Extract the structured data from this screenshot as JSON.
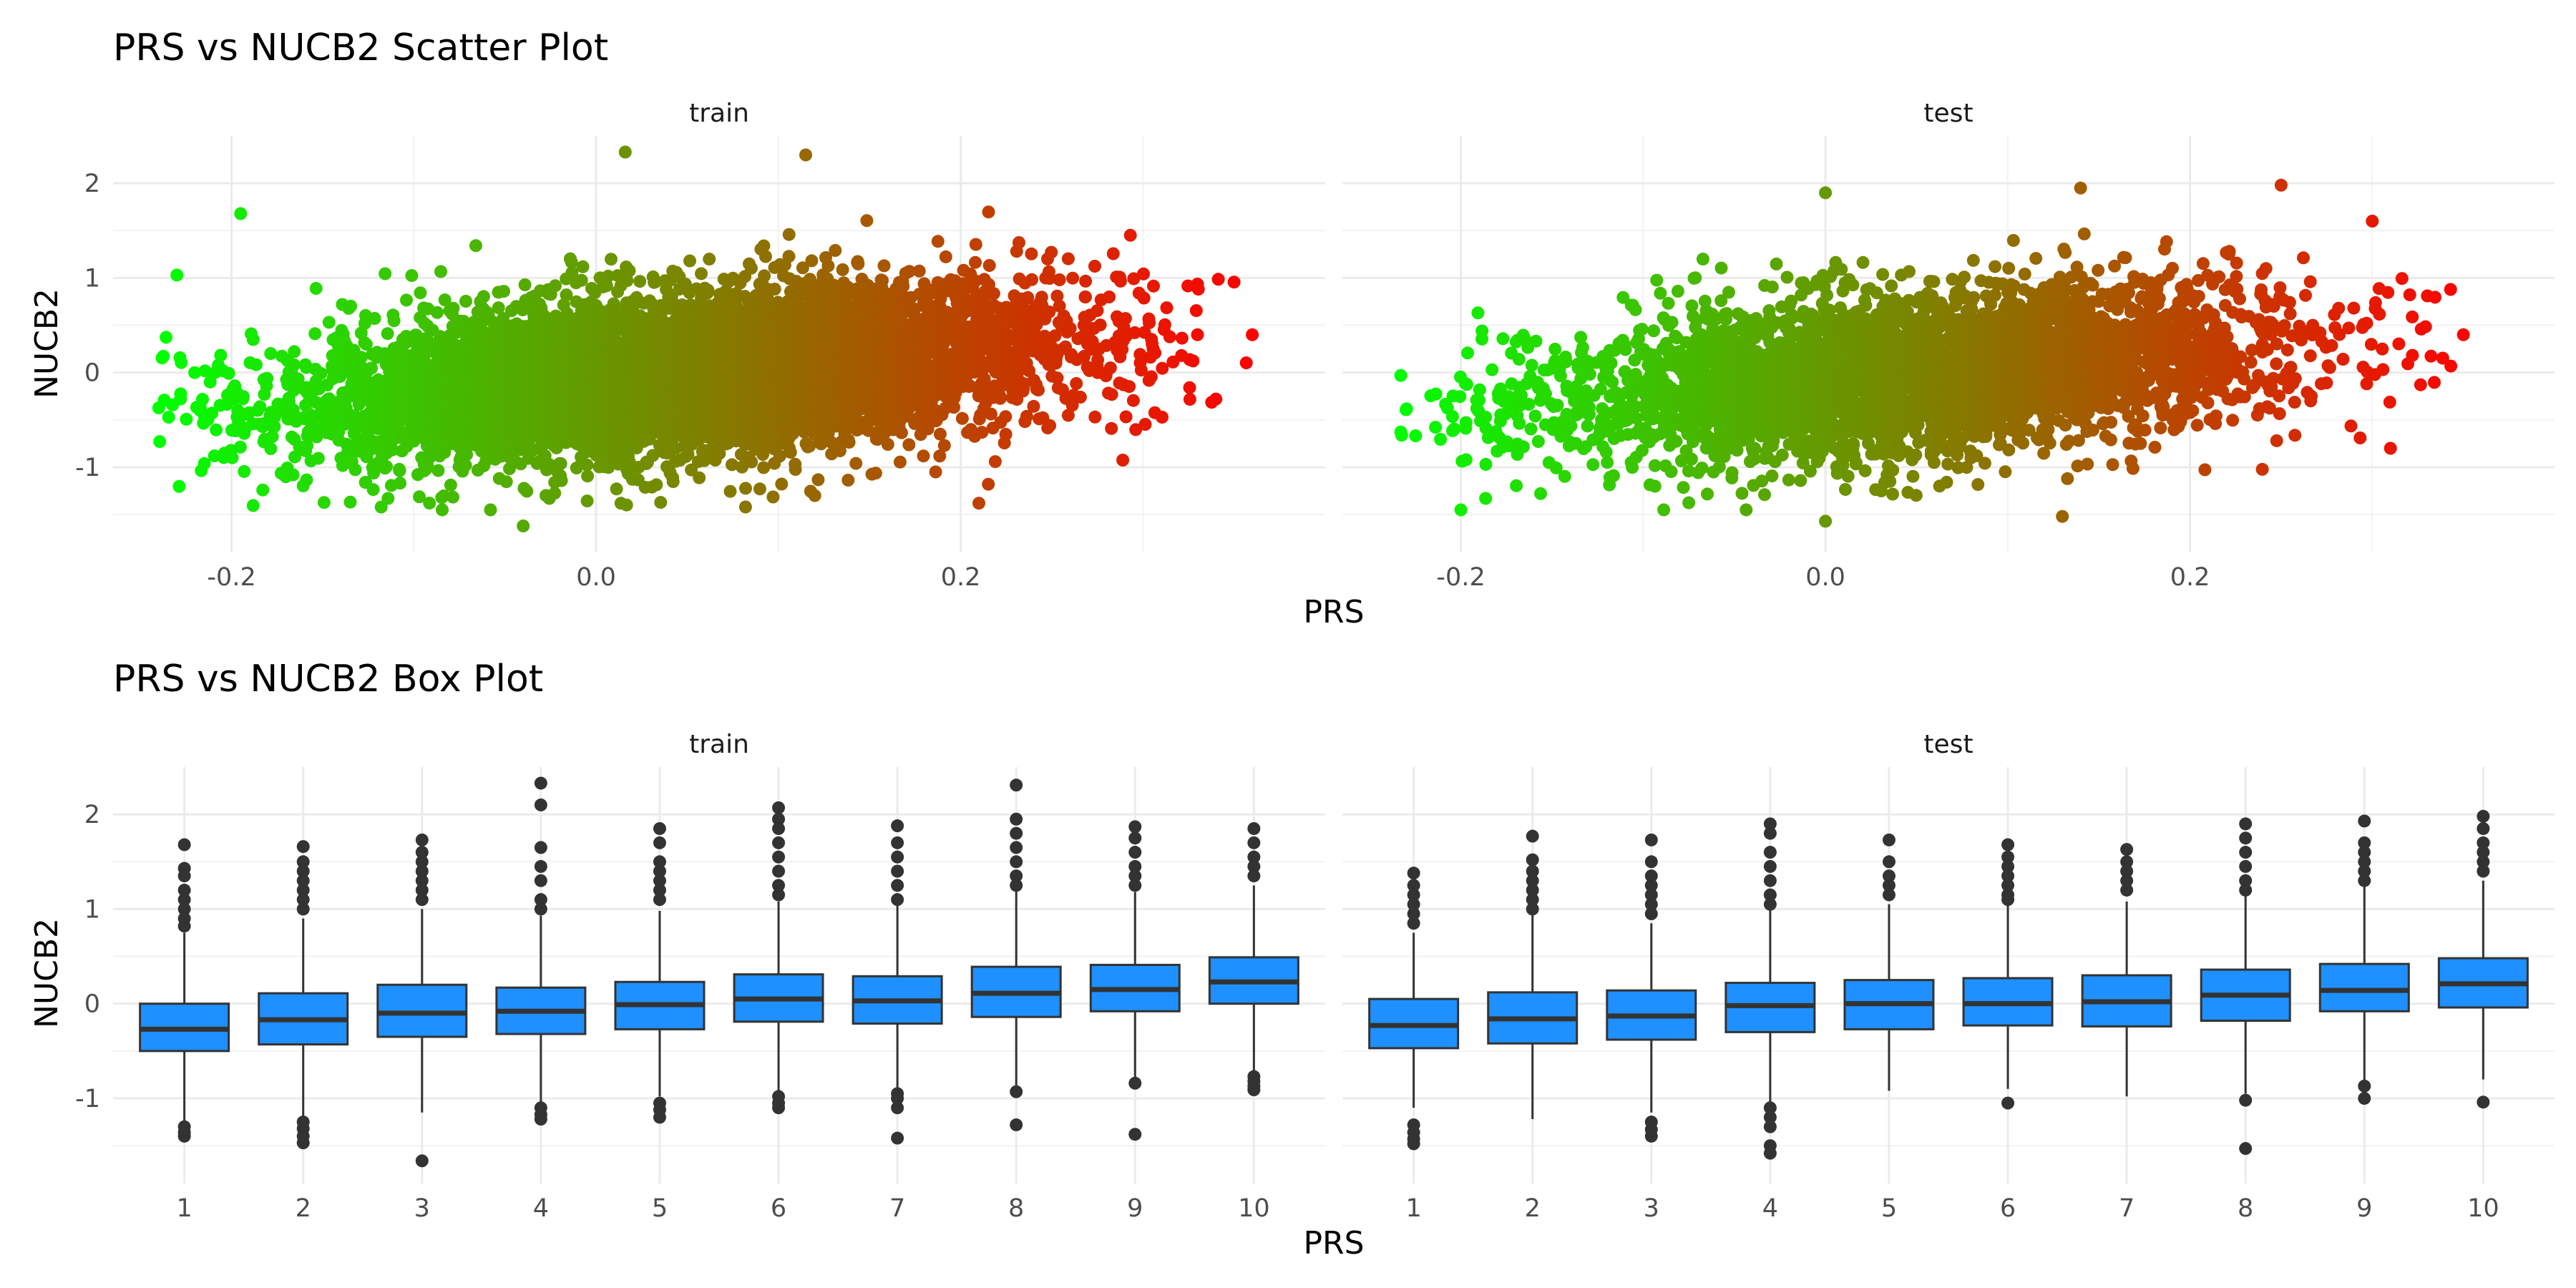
{
  "chart_data": [
    {
      "type": "scatter",
      "title": "PRS vs NUCB2 Scatter Plot",
      "xlabel": "PRS",
      "ylabel": "NUCB2",
      "facets": [
        "train",
        "test"
      ],
      "xlim": [
        -0.265,
        0.4
      ],
      "ylim": [
        -1.9,
        2.5
      ],
      "x_ticks": [
        -0.2,
        0.0,
        0.2
      ],
      "y_ticks": [
        -1,
        0,
        1,
        2
      ],
      "x_tick_labels": [
        "-0.2",
        "0.0",
        "0.2"
      ],
      "y_tick_labels": [
        "-1",
        "0",
        "1",
        "2"
      ],
      "color_scale": {
        "low": "#00ff00",
        "high": "#ff0000",
        "by": "PRS"
      },
      "grid": true,
      "series": [
        {
          "facet": "train",
          "x_range": [
            -0.24,
            0.36
          ],
          "trend_slope": 1.55,
          "spread": 0.42,
          "extreme_points": [
            [
              0.016,
              2.33
            ],
            [
              0.115,
              2.3
            ],
            [
              -0.195,
              1.68
            ],
            [
              -0.04,
              -1.62
            ],
            [
              0.21,
              -1.38
            ],
            [
              0.36,
              0.4
            ],
            [
              0.34,
              -0.28
            ],
            [
              -0.23,
              1.03
            ],
            [
              0.082,
              -1.42
            ],
            [
              0.12,
              -1.3
            ]
          ]
        },
        {
          "facet": "test",
          "x_range": [
            -0.235,
            0.35
          ],
          "trend_slope": 1.5,
          "spread": 0.42,
          "extreme_points": [
            [
              0.13,
              -1.52
            ],
            [
              0.0,
              1.9
            ],
            [
              0.3,
              1.6
            ],
            [
              0.25,
              1.98
            ],
            [
              -0.2,
              -1.45
            ],
            [
              0.35,
              0.4
            ],
            [
              0.31,
              -0.8
            ],
            [
              0.0,
              -1.57
            ],
            [
              0.14,
              1.95
            ]
          ]
        }
      ]
    },
    {
      "type": "box",
      "title": "PRS vs NUCB2 Box Plot",
      "xlabel": "PRS",
      "ylabel": "NUCB2",
      "facets": [
        "train",
        "test"
      ],
      "categories": [
        "1",
        "2",
        "3",
        "4",
        "5",
        "6",
        "7",
        "8",
        "9",
        "10"
      ],
      "ylim": [
        -1.9,
        2.5
      ],
      "y_ticks": [
        -1,
        0,
        1,
        2
      ],
      "y_tick_labels": [
        "-1",
        "0",
        "1",
        "2"
      ],
      "fill": "#1e90ff",
      "grid": true,
      "series": [
        {
          "name": "train",
          "boxes": [
            {
              "q1": -0.5,
              "median": -0.27,
              "q3": 0.0,
              "whisker_low": -1.25,
              "whisker_high": 0.75,
              "outliers": [
                -1.3,
                -1.36,
                -1.4,
                1.68,
                1.43,
                1.35,
                1.2,
                1.1,
                1.0,
                0.9,
                0.82
              ]
            },
            {
              "q1": -0.43,
              "median": -0.17,
              "q3": 0.11,
              "whisker_low": -1.2,
              "whisker_high": 0.9,
              "outliers": [
                -1.25,
                -1.32,
                -1.4,
                -1.47,
                1.66,
                1.5,
                1.4,
                1.3,
                1.2,
                1.1,
                1.0
              ]
            },
            {
              "q1": -0.35,
              "median": -0.1,
              "q3": 0.2,
              "whisker_low": -1.15,
              "whisker_high": 1.0,
              "outliers": [
                -1.66,
                1.73,
                1.6,
                1.5,
                1.4,
                1.3,
                1.2,
                1.1
              ]
            },
            {
              "q1": -0.32,
              "median": -0.08,
              "q3": 0.17,
              "whisker_low": -1.05,
              "whisker_high": 0.93,
              "outliers": [
                -1.1,
                -1.17,
                -1.22,
                2.33,
                2.1,
                1.65,
                1.45,
                1.3,
                1.1,
                1.0
              ]
            },
            {
              "q1": -0.27,
              "median": -0.01,
              "q3": 0.23,
              "whisker_low": -0.98,
              "whisker_high": 0.98,
              "outliers": [
                -1.05,
                -1.12,
                -1.2,
                1.85,
                1.7,
                1.5,
                1.4,
                1.3,
                1.2,
                1.1
              ]
            },
            {
              "q1": -0.19,
              "median": 0.05,
              "q3": 0.31,
              "whisker_low": -0.92,
              "whisker_high": 1.08,
              "outliers": [
                -0.98,
                -1.05,
                -1.1,
                2.07,
                1.95,
                1.85,
                1.7,
                1.55,
                1.4,
                1.25,
                1.15
              ]
            },
            {
              "q1": -0.21,
              "median": 0.03,
              "q3": 0.29,
              "whisker_low": -0.92,
              "whisker_high": 1.05,
              "outliers": [
                -0.95,
                -1.0,
                -1.1,
                -1.42,
                1.88,
                1.7,
                1.55,
                1.4,
                1.25,
                1.1
              ]
            },
            {
              "q1": -0.14,
              "median": 0.11,
              "q3": 0.39,
              "whisker_low": -0.88,
              "whisker_high": 1.2,
              "outliers": [
                -0.93,
                -1.28,
                2.31,
                1.95,
                1.8,
                1.65,
                1.5,
                1.35,
                1.25
              ]
            },
            {
              "q1": -0.08,
              "median": 0.15,
              "q3": 0.41,
              "whisker_low": -0.8,
              "whisker_high": 1.18,
              "outliers": [
                -0.84,
                -1.38,
                1.87,
                1.75,
                1.6,
                1.45,
                1.35,
                1.25
              ]
            },
            {
              "q1": 0.0,
              "median": 0.23,
              "q3": 0.49,
              "whisker_low": -0.72,
              "whisker_high": 1.25,
              "outliers": [
                -0.77,
                -0.82,
                -0.87,
                -0.91,
                1.85,
                1.7,
                1.55,
                1.45,
                1.35
              ]
            }
          ]
        },
        {
          "name": "test",
          "boxes": [
            {
              "q1": -0.47,
              "median": -0.23,
              "q3": 0.05,
              "whisker_low": -1.1,
              "whisker_high": 0.75,
              "outliers": [
                -1.28,
                -1.36,
                -1.43,
                -1.48,
                1.38,
                1.25,
                1.15,
                1.05,
                0.95,
                0.85
              ]
            },
            {
              "q1": -0.42,
              "median": -0.16,
              "q3": 0.12,
              "whisker_low": -1.22,
              "whisker_high": 0.95,
              "outliers": [
                1.77,
                1.52,
                1.4,
                1.3,
                1.2,
                1.1,
                1.0
              ]
            },
            {
              "q1": -0.38,
              "median": -0.13,
              "q3": 0.14,
              "whisker_low": -1.15,
              "whisker_high": 0.85,
              "outliers": [
                -1.25,
                -1.33,
                -1.4,
                1.73,
                1.5,
                1.35,
                1.25,
                1.15,
                1.05,
                0.95
              ]
            },
            {
              "q1": -0.3,
              "median": -0.02,
              "q3": 0.22,
              "whisker_low": -1.05,
              "whisker_high": 1.0,
              "outliers": [
                -1.1,
                -1.2,
                -1.3,
                -1.5,
                -1.58,
                1.9,
                1.8,
                1.6,
                1.45,
                1.3,
                1.15,
                1.05
              ]
            },
            {
              "q1": -0.27,
              "median": 0.0,
              "q3": 0.25,
              "whisker_low": -0.92,
              "whisker_high": 1.05,
              "outliers": [
                1.73,
                1.5,
                1.35,
                1.25,
                1.15
              ]
            },
            {
              "q1": -0.23,
              "median": 0.0,
              "q3": 0.27,
              "whisker_low": -0.9,
              "whisker_high": 1.05,
              "outliers": [
                -1.05,
                1.68,
                1.55,
                1.45,
                1.35,
                1.25,
                1.15,
                1.1
              ]
            },
            {
              "q1": -0.24,
              "median": 0.02,
              "q3": 0.3,
              "whisker_low": -0.98,
              "whisker_high": 1.08,
              "outliers": [
                1.63,
                1.5,
                1.4,
                1.3,
                1.2
              ]
            },
            {
              "q1": -0.18,
              "median": 0.09,
              "q3": 0.36,
              "whisker_low": -0.95,
              "whisker_high": 1.15,
              "outliers": [
                -1.02,
                -1.53,
                1.9,
                1.75,
                1.6,
                1.45,
                1.3,
                1.2
              ]
            },
            {
              "q1": -0.08,
              "median": 0.14,
              "q3": 0.42,
              "whisker_low": -0.82,
              "whisker_high": 1.25,
              "outliers": [
                -0.87,
                -1.0,
                1.93,
                1.7,
                1.6,
                1.5,
                1.4,
                1.3
              ]
            },
            {
              "q1": -0.04,
              "median": 0.21,
              "q3": 0.48,
              "whisker_low": -0.8,
              "whisker_high": 1.3,
              "outliers": [
                -1.04,
                1.98,
                1.85,
                1.7,
                1.6,
                1.5,
                1.4
              ]
            }
          ]
        }
      ]
    }
  ]
}
